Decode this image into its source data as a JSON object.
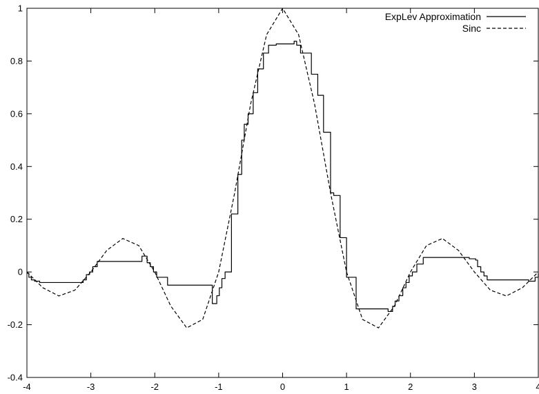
{
  "chart_data": {
    "type": "line",
    "title": "",
    "xlabel": "",
    "ylabel": "",
    "xlim": [
      -4,
      4
    ],
    "ylim": [
      -0.4,
      1
    ],
    "grid": false,
    "legend_position": "top-right",
    "x_ticks": [
      -4,
      -3,
      -2,
      -1,
      0,
      1,
      2,
      3,
      4
    ],
    "y_ticks": [
      -0.4,
      -0.2,
      0,
      0.2,
      0.4,
      0.6,
      0.8,
      1
    ],
    "x_tick_labels": [
      "-4",
      "-3",
      "-2",
      "-1",
      "0",
      "1",
      "2",
      "3",
      "4"
    ],
    "y_tick_labels": [
      "-0.4",
      "-0.2",
      "0",
      "0.2",
      "0.4",
      "0.6",
      "0.8",
      "1"
    ],
    "series": [
      {
        "name": "ExpLev Approximation",
        "style": "solid",
        "color": "#000000",
        "step": true,
        "x": [
          -4.0,
          -3.97,
          -3.93,
          -3.88,
          -3.8,
          -3.2,
          -3.12,
          -3.07,
          -3.02,
          -2.97,
          -2.9,
          -2.2,
          -2.16,
          -2.12,
          -2.07,
          -2.02,
          -1.97,
          -1.8,
          -1.1,
          -1.06,
          -1.03,
          -0.99,
          -0.95,
          -0.9,
          -0.8,
          -0.7,
          -0.64,
          -0.6,
          -0.54,
          -0.46,
          -0.39,
          -0.3,
          -0.22,
          -0.15,
          -0.1,
          0.18,
          0.22,
          0.28,
          0.45,
          0.55,
          0.64,
          0.75,
          0.8,
          0.9,
          1.0,
          1.15,
          1.65,
          1.72,
          1.76,
          1.82,
          1.88,
          1.93,
          1.98,
          2.03,
          2.1,
          2.2,
          2.82,
          2.92,
          3.02,
          3.05,
          3.1,
          3.15,
          3.2,
          3.85,
          3.9,
          3.95,
          4.0
        ],
        "y": [
          -0.005,
          -0.02,
          -0.03,
          -0.035,
          -0.04,
          -0.04,
          -0.03,
          -0.01,
          0.0,
          0.02,
          0.04,
          0.06,
          0.06,
          0.035,
          0.02,
          0.0,
          -0.02,
          -0.05,
          -0.12,
          -0.12,
          -0.09,
          -0.06,
          -0.025,
          0.0,
          0.22,
          0.37,
          0.5,
          0.56,
          0.6,
          0.68,
          0.77,
          0.83,
          0.86,
          0.86,
          0.865,
          0.875,
          0.86,
          0.83,
          0.75,
          0.67,
          0.53,
          0.3,
          0.29,
          0.13,
          -0.02,
          -0.14,
          -0.15,
          -0.13,
          -0.11,
          -0.09,
          -0.06,
          -0.04,
          -0.015,
          0.0,
          0.03,
          0.055,
          0.055,
          0.05,
          0.045,
          0.02,
          0.0,
          -0.015,
          -0.03,
          -0.035,
          -0.035,
          -0.02,
          -0.005
        ]
      },
      {
        "name": "Sinc",
        "style": "dashed",
        "color": "#000000",
        "function": "sin(pi x)/(pi x)",
        "x": [
          -4.0,
          -3.75,
          -3.5,
          -3.25,
          -3.0,
          -2.75,
          -2.5,
          -2.25,
          -2.0,
          -1.75,
          -1.5,
          -1.25,
          -1.0,
          -0.75,
          -0.5,
          -0.25,
          0.0,
          0.25,
          0.5,
          0.75,
          1.0,
          1.25,
          1.5,
          1.75,
          2.0,
          2.25,
          2.5,
          2.75,
          3.0,
          3.25,
          3.5,
          3.75,
          4.0
        ],
        "y": [
          0.0,
          -0.06,
          -0.091,
          -0.069,
          0.0,
          0.082,
          0.127,
          0.1,
          0.0,
          -0.129,
          -0.212,
          -0.18,
          0.0,
          0.3,
          0.637,
          0.9,
          1.0,
          0.9,
          0.637,
          0.3,
          0.0,
          -0.18,
          -0.212,
          -0.129,
          0.0,
          0.1,
          0.127,
          0.082,
          0.0,
          -0.069,
          -0.091,
          -0.06,
          0.0
        ]
      }
    ]
  }
}
